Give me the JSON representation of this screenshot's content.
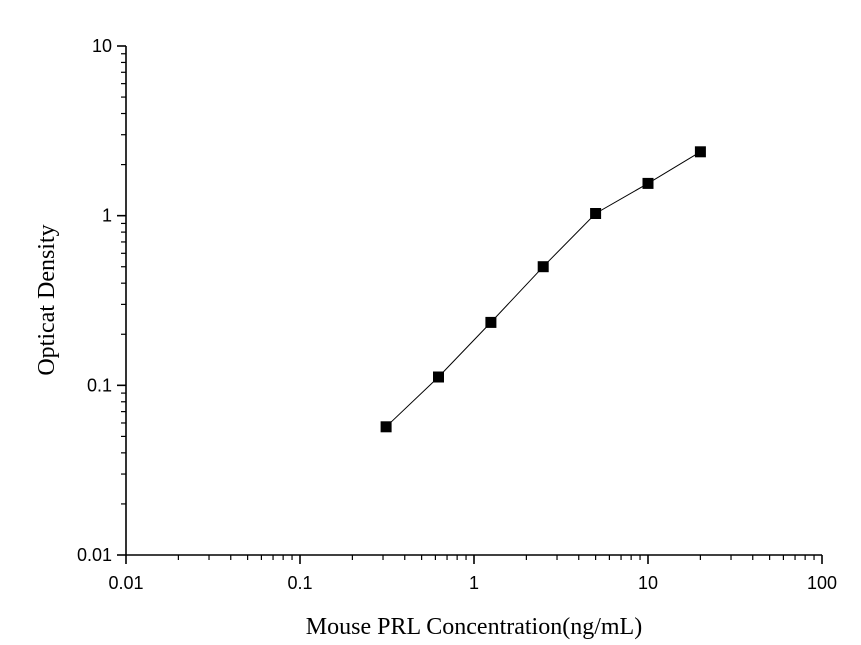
{
  "chart_data": {
    "type": "scatter",
    "title": "",
    "xlabel": "Mouse PRL  Concentration(ng/mL)",
    "ylabel": "Opticat Density",
    "x_scale": "log",
    "y_scale": "log",
    "xlim": [
      0.01,
      100
    ],
    "ylim": [
      0.01,
      10
    ],
    "x_ticks": [
      "0.01",
      "0.1",
      "1",
      "10",
      "100"
    ],
    "y_ticks": [
      "0.01",
      "0.1",
      "1",
      "10"
    ],
    "grid": false,
    "legend": "none",
    "series": [
      {
        "x": [
          0.3125,
          0.625,
          1.25,
          2.5,
          5,
          10,
          20
        ],
        "y": [
          0.057,
          0.112,
          0.235,
          0.5,
          1.03,
          1.55,
          2.38
        ],
        "marker": "square",
        "color": "#000000",
        "line": true
      }
    ]
  }
}
